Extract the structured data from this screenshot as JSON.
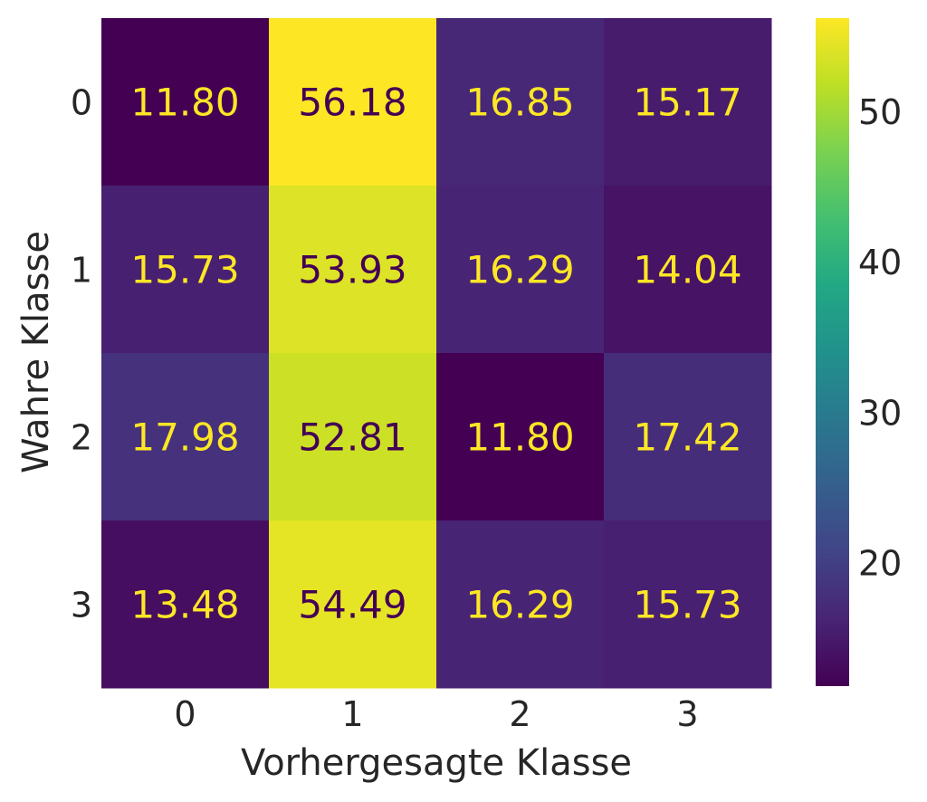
{
  "chart_data": {
    "type": "heatmap",
    "title": "",
    "xlabel": "Vorhergesagte Klasse",
    "ylabel": "Wahre Klasse",
    "x_categories": [
      "0",
      "1",
      "2",
      "3"
    ],
    "y_categories": [
      "0",
      "1",
      "2",
      "3"
    ],
    "values": [
      [
        11.8,
        56.18,
        16.85,
        15.17
      ],
      [
        15.73,
        53.93,
        16.29,
        14.04
      ],
      [
        17.98,
        52.81,
        11.8,
        17.42
      ],
      [
        13.48,
        54.49,
        16.29,
        15.73
      ]
    ],
    "value_labels": [
      [
        "11.80",
        "56.18",
        "16.85",
        "15.17"
      ],
      [
        "15.73",
        "53.93",
        "16.29",
        "14.04"
      ],
      [
        "17.98",
        "52.81",
        "11.80",
        "17.42"
      ],
      [
        "13.48",
        "54.49",
        "16.29",
        "15.73"
      ]
    ],
    "colormap": "viridis",
    "vmin": 11.8,
    "vmax": 56.18,
    "colorbar": {
      "ticks": [
        "20",
        "30",
        "40",
        "50"
      ],
      "tick_values": [
        20,
        30,
        40,
        50
      ],
      "placement": "right"
    },
    "grid": false,
    "text_colors": {
      "light": "#fde725",
      "dark": "#440154"
    }
  }
}
